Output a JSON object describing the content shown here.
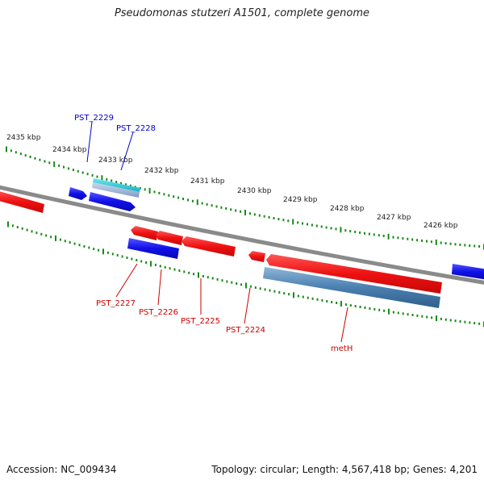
{
  "title": "Pseudomonas stutzeri A1501, complete genome",
  "footer": {
    "accession": "Accession: NC_009434",
    "summary": "Topology: circular; Length: 4,567,418 bp; Genes: 4,201"
  },
  "colors": {
    "forward_gene": "#1010e8",
    "reverse_gene": "#ee1111",
    "cds_feature": "#4a7fb0",
    "cyan_feature": "#20c4d4",
    "backbone": "#8a8a8a",
    "tick": "#1a8a1a",
    "label_forward": "#0000cc",
    "label_reverse": "#cc0000"
  },
  "scale": {
    "unit": "kbp",
    "labels": [
      "2435 kbp",
      "2434 kbp",
      "2433 kbp",
      "2432 kbp",
      "2431 kbp",
      "2430 kbp",
      "2429 kbp",
      "2428 kbp",
      "2427 kbp",
      "2426 kbp"
    ]
  },
  "gene_labels": {
    "forward": [
      "PST_2229",
      "PST_2228"
    ],
    "reverse": [
      "PST_2227",
      "PST_2226",
      "PST_2225",
      "PST_2224",
      "metH"
    ]
  }
}
